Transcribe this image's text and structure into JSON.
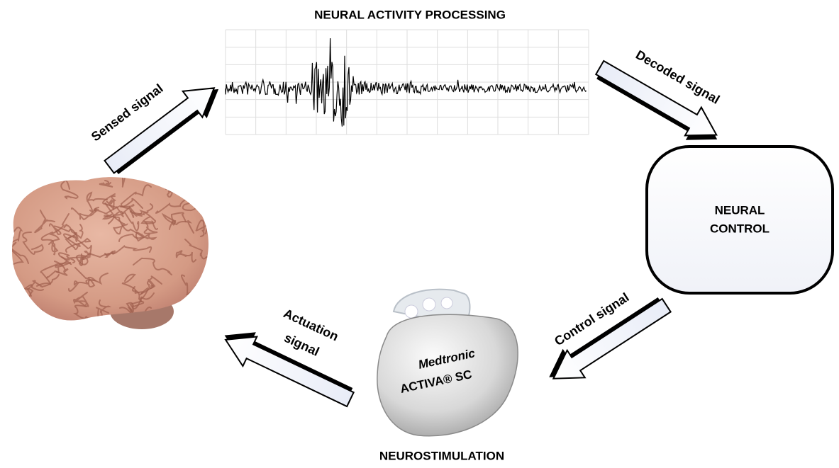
{
  "title": "NEURAL ACTIVITY PROCESSING",
  "control": {
    "lines": [
      "NEURAL",
      "CONTROL"
    ]
  },
  "stimulation": "NEUROSTIMULATION",
  "arrows": {
    "sensed": "Sensed signal",
    "decoded": "Decoded signal",
    "control": "Control signal",
    "actuation": [
      "Actuation",
      "signal"
    ]
  },
  "device": {
    "brand": "Medtronic",
    "model": "ACTIVA® SC"
  }
}
